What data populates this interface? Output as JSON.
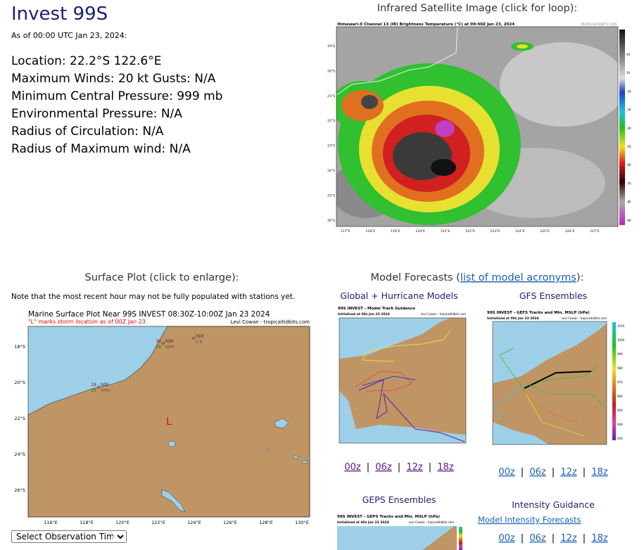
{
  "storm": {
    "title": "Invest 99S",
    "as_of": "As of 00:00 UTC Jan 23, 2024:",
    "lines": [
      "Location: 22.2°S 122.6°E",
      "Maximum Winds: 20 kt  Gusts: N/A",
      "Minimum Central Pressure: 999 mb",
      "Environmental Pressure: N/A",
      "Radius of Circulation: N/A",
      "Radius of Maximum wind: N/A"
    ]
  },
  "satellite": {
    "heading": "Infrared Satellite Image (click for loop):",
    "image_title": "Himawari-9 Channel 13 (IR) Brightness Temperature (°C) at 09:40Z Jan 23, 2024",
    "credit": "TROPICALTIDBITS.COM",
    "lat_labels": [
      "19°S",
      "20°S",
      "21°S",
      "22°S",
      "23°S",
      "24°S",
      "25°S",
      "26°S"
    ],
    "lon_labels": [
      "117°E",
      "118°E",
      "119°E",
      "120°E",
      "121°E",
      "122°E",
      "123°E",
      "124°E",
      "125°E",
      "126°E",
      "127°E"
    ],
    "colorbar_labels": [
      "40",
      "20",
      "-20",
      "-30",
      "-40",
      "-50",
      "-60",
      "-70",
      "-80",
      "-90"
    ]
  },
  "surface": {
    "heading": "Surface Plot (click to enlarge):",
    "note": "Note that the most recent hour may not be fully populated with stations yet.",
    "plot_title": "Marine Surface Plot Near 99S INVEST 08:30Z-10:00Z Jan 23 2024",
    "plot_subtitle": "\"L\" marks storm location as of 00Z Jan 23",
    "credit": "Levi Cowan - tropicaltidbits.com",
    "lat_labels": [
      "18°S",
      "20°S",
      "22°S",
      "24°S",
      "26°S"
    ],
    "lon_labels": [
      "116°E",
      "118°E",
      "120°E",
      "122°E",
      "124°E",
      "126°E",
      "128°E",
      "130°E"
    ],
    "storm_marker": "L",
    "stations": [
      {
        "temp": "30",
        "pressure": "020",
        "dewpoint": "26",
        "id": "BRM"
      },
      {
        "pressure": "010",
        "id": "ICN"
      },
      {
        "temp": "29",
        "pressure": "000",
        "dewpoint": "25",
        "id": "YPPD"
      }
    ],
    "select": "Select Observation Time..."
  },
  "models": {
    "heading_prefix": "Model Forecasts (",
    "heading_link": "list of model acronyms",
    "heading_suffix": "):",
    "runs": [
      "00z",
      "06z",
      "12z",
      "18z"
    ],
    "separator": "|",
    "global": {
      "title": "Global + Hurricane Models",
      "image_title": "99S INVEST - Model Track Guidance",
      "init": "Initialized at 00z Jan 23 2024",
      "credit": "Levi Cowan - tropicaltidbits.com"
    },
    "gfs": {
      "title": "GFS Ensembles",
      "image_title": "99S INVEST - GEFS Tracks and Min. MSLP (hPa)",
      "init": "Initialized at 00z Jan 23 2024",
      "credit": "Levi Cowan - tropicaltidbits.com",
      "colorbar_labels": [
        "1010",
        "1000",
        "990",
        "980",
        "970",
        "960",
        "950",
        "940",
        "930"
      ]
    },
    "geps": {
      "title": "GEPS Ensembles",
      "image_title": "99S INVEST - GEPS Tracks and Min. MSLP (hPa)",
      "init": "Initialized at 00z Jan 23 2024",
      "credit": "Levi Cowan - tropicaltidbits.com"
    },
    "intensity": {
      "title": "Intensity Guidance",
      "link": "Model Intensity Forecasts"
    }
  }
}
